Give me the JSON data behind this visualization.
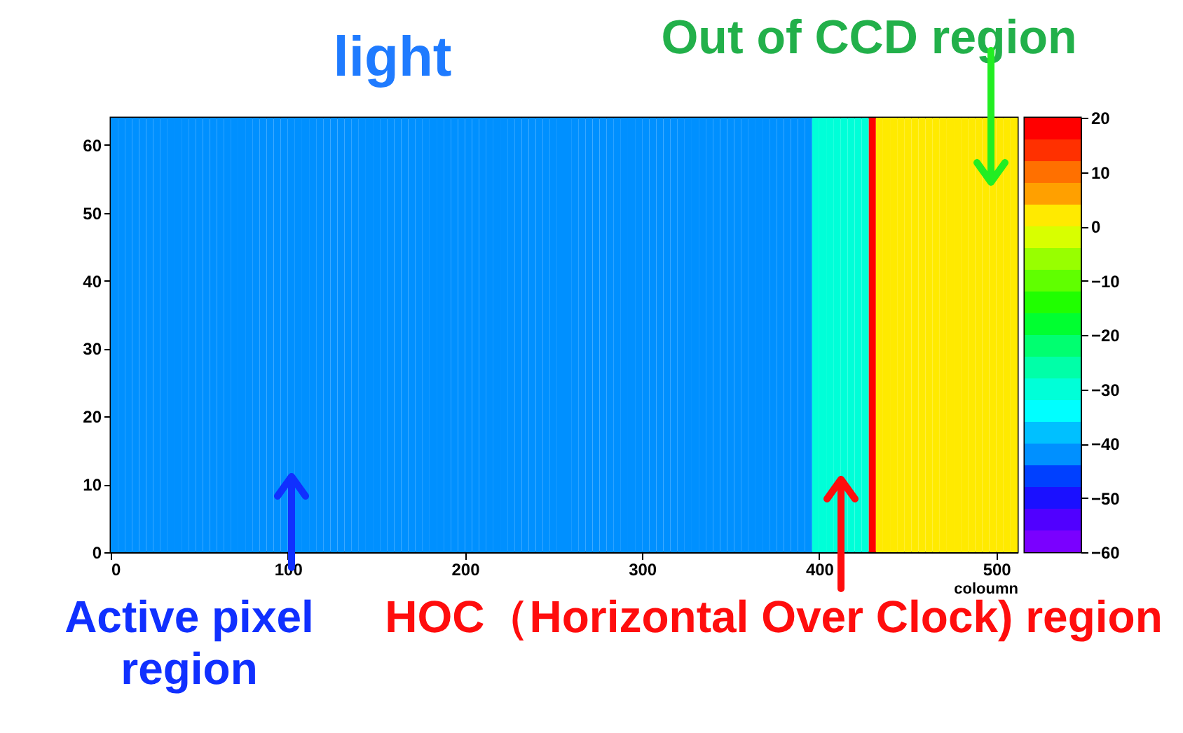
{
  "chart_data": {
    "type": "heatmap",
    "title": "light",
    "xlabel": "coloumn",
    "x": [
      2,
      6,
      10,
      14,
      18,
      22,
      26,
      30,
      34,
      38,
      42,
      46,
      50,
      54,
      58,
      62,
      66,
      70,
      74,
      78,
      82,
      86,
      90,
      94,
      98,
      102,
      106,
      110,
      114,
      118,
      122,
      126,
      130,
      134,
      138,
      142,
      146,
      150,
      154,
      158,
      162,
      166,
      170,
      174,
      178,
      182,
      186,
      190,
      194,
      198,
      202,
      206,
      210,
      214,
      218,
      222,
      226,
      230,
      234,
      238,
      242,
      246,
      250,
      254,
      258,
      262,
      266,
      270,
      274,
      278,
      282,
      286,
      290,
      294,
      298,
      302,
      306,
      310,
      314,
      318,
      322,
      326,
      330,
      334,
      338,
      342,
      346,
      350,
      354,
      358,
      362,
      366,
      370,
      374,
      378,
      382,
      386,
      390,
      394,
      398,
      402,
      406,
      410,
      414,
      418,
      422,
      426,
      430,
      434,
      438,
      442,
      446,
      450,
      454,
      458,
      462,
      466,
      470,
      474,
      478,
      482,
      486,
      490,
      494,
      498,
      502,
      506,
      510
    ],
    "xlim": [
      0,
      512
    ],
    "xticks": [
      0,
      100,
      200,
      300,
      400,
      500
    ],
    "ylim": [
      0,
      64
    ],
    "yticks": [
      0,
      10,
      20,
      30,
      40,
      50,
      60
    ],
    "cells": [
      [
        -41,
        -41,
        -41,
        -41,
        -41,
        -41,
        -41,
        -41,
        -41,
        -41,
        -41,
        -41,
        -41,
        -41,
        -41,
        -41,
        -41,
        -41,
        -41,
        -41,
        -41,
        -41,
        -41,
        -41,
        -41,
        -41,
        -41,
        -41,
        -41,
        -41,
        -41,
        -41,
        -41,
        -41,
        -41,
        -41,
        -41,
        -41,
        -41,
        -41,
        -41,
        -41,
        -41,
        -41,
        -41,
        -41,
        -41,
        -41,
        -41,
        -41,
        -41,
        -41,
        -41,
        -41,
        -41,
        -41,
        -41,
        -41,
        -41,
        -41,
        -41,
        -41,
        -41,
        -41,
        -41,
        -41,
        -41,
        -41,
        -41,
        -41,
        -41,
        -41,
        -41,
        -41,
        -41,
        -41,
        -41,
        -41,
        -41,
        -41,
        -41,
        -41,
        -41,
        -41,
        -41,
        -41,
        -41,
        -41,
        -41,
        -41,
        -41,
        -41,
        -41,
        -41,
        -41,
        -41,
        -41,
        -41,
        -41,
        -30,
        -30,
        -30,
        -30,
        -30,
        -30,
        -30,
        -30,
        18,
        2,
        2,
        2,
        2,
        2,
        2,
        2,
        2,
        2,
        2,
        2,
        2,
        2,
        2,
        2,
        2,
        2,
        2,
        2,
        2
      ]
    ],
    "clim": [
      -60,
      20
    ],
    "cticks": [
      -60,
      -50,
      -40,
      -30,
      -20,
      -10,
      0,
      10,
      20
    ],
    "grid": false,
    "annotations": [
      "Out of CCD region",
      "Active pixel region",
      "HOC（Horizontal Over Clock) region"
    ]
  }
}
